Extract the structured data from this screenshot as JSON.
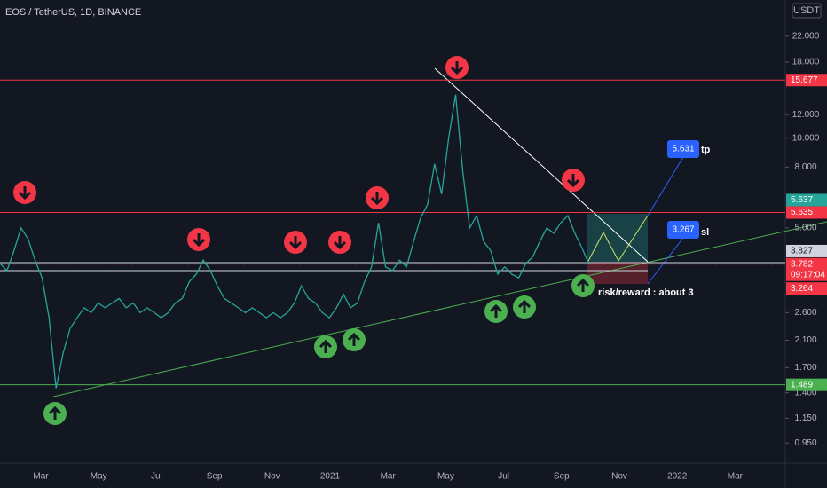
{
  "header": {
    "title": "EOS / TetherUS, 1D, BINANCE",
    "currency": "USDT"
  },
  "price_axis": {
    "scale": "log",
    "ylim": [
      0.824,
      29.1
    ],
    "ticks": [
      {
        "value": 22,
        "label": "22.000"
      },
      {
        "value": 18,
        "label": "18.000"
      },
      {
        "value": 12,
        "label": "12.000"
      },
      {
        "value": 10,
        "label": "10.000"
      },
      {
        "value": 8,
        "label": "8.000"
      },
      {
        "value": 5,
        "label": "5.000"
      },
      {
        "value": 2.6,
        "label": "2.600"
      },
      {
        "value": 2.1,
        "label": "2.100"
      },
      {
        "value": 1.7,
        "label": "1.700"
      },
      {
        "value": 1.4,
        "label": "1.400"
      },
      {
        "value": 1.15,
        "label": "1.150"
      },
      {
        "value": 0.95,
        "label": "0.950"
      }
    ]
  },
  "time_axis": {
    "labels": [
      "Mar",
      "May",
      "Jul",
      "Sep",
      "Nov",
      "2021",
      "Mar",
      "May",
      "Jul",
      "Sep",
      "Nov",
      "2022",
      "Mar"
    ]
  },
  "price_tags": [
    {
      "value": 15.677,
      "label": "15.677",
      "color": "#f23645"
    },
    {
      "value": 5.637,
      "label": "5.637",
      "color": "#26a69a"
    },
    {
      "value": 5.635,
      "label": "5.635",
      "color": "#f23645"
    },
    {
      "value": 3.827,
      "label": "3.827",
      "color": "#d1d4dc"
    },
    {
      "value": 3.782,
      "label": "3.782",
      "color": "#f23645",
      "countdown": "09:17:04"
    },
    {
      "value": 3.264,
      "label": "3.264",
      "color": "#f23645"
    },
    {
      "value": 1.489,
      "label": "1.489",
      "color": "#4caf50"
    }
  ],
  "price_series": {
    "color": "#26a69a",
    "values": [
      3.8,
      3.6,
      4.2,
      5.0,
      4.6,
      3.9,
      3.4,
      2.5,
      1.45,
      1.9,
      2.3,
      2.5,
      2.7,
      2.6,
      2.8,
      2.7,
      2.8,
      2.9,
      2.7,
      2.8,
      2.6,
      2.7,
      2.6,
      2.5,
      2.6,
      2.8,
      2.9,
      3.3,
      3.5,
      3.9,
      3.6,
      3.2,
      2.9,
      2.8,
      2.7,
      2.6,
      2.7,
      2.6,
      2.5,
      2.6,
      2.5,
      2.6,
      2.8,
      3.2,
      2.9,
      2.8,
      2.6,
      2.5,
      2.7,
      3.0,
      2.7,
      2.8,
      3.3,
      3.7,
      5.2,
      3.7,
      3.6,
      3.9,
      3.7,
      4.5,
      5.4,
      6.0,
      8.2,
      6.5,
      10.0,
      14.0,
      7.8,
      5.0,
      5.5,
      4.5,
      4.2,
      3.5,
      3.7,
      3.5,
      3.4,
      3.8,
      4.0,
      4.5,
      5.0,
      4.8,
      5.2,
      5.5,
      4.8,
      4.3,
      3.78
    ]
  },
  "annotations": {
    "tp_price": "5.631",
    "tp_label": "tp",
    "sl_price": "3.267",
    "sl_label": "sl",
    "risk_reward": "risk/reward : about 3"
  }
}
